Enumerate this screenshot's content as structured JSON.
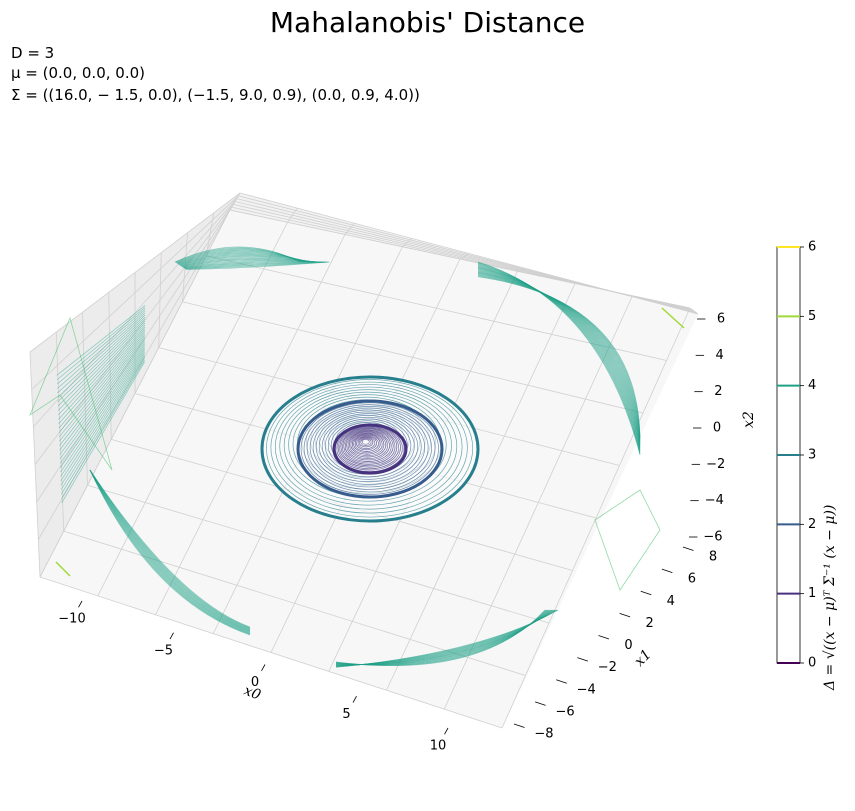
{
  "chart_data": {
    "type": "contour3d",
    "title": "Mahalanobis' Distance",
    "info": {
      "line1": "D = 3",
      "line2": "μ = (0.0, 0.0, 0.0)",
      "line3": "Σ = ((16.0, − 1.5, 0.0), (−1.5, 9.0, 0.9), (0.0, 0.9, 4.0))"
    },
    "dimension": 3,
    "mean": [
      0.0,
      0.0,
      0.0
    ],
    "covariance": [
      [
        16.0,
        -1.5,
        0.0
      ],
      [
        -1.5,
        9.0,
        0.9
      ],
      [
        0.0,
        0.9,
        4.0
      ]
    ],
    "axes": {
      "x0": {
        "label": "x0",
        "ticks": [
          "−10",
          "−5",
          "0",
          "5",
          "10"
        ],
        "range": [
          -12,
          12
        ]
      },
      "x1": {
        "label": "x1",
        "ticks": [
          "−8",
          "−6",
          "−4",
          "−2",
          "0",
          "2",
          "4",
          "6",
          "8"
        ],
        "range": [
          -9,
          9
        ]
      },
      "x2": {
        "label": "x2",
        "ticks": [
          "−6",
          "−4",
          "−2",
          "0",
          "2",
          "4",
          "6"
        ],
        "range": [
          -6,
          6
        ]
      }
    },
    "levels": [
      1,
      2,
      3,
      4,
      5
    ],
    "level_colors": [
      "#46327e",
      "#365c8d",
      "#277f8e",
      "#1fa187",
      "#4ac16d",
      "#a0da39"
    ],
    "colorbar": {
      "ticks": [
        "0",
        "1",
        "2",
        "3",
        "4",
        "5",
        "6"
      ],
      "colors": [
        "#440154",
        "#46327e",
        "#365c8d",
        "#277f8e",
        "#1fa187",
        "#a0da39",
        "#fde725"
      ],
      "label": "Δ = √((x − μ)ᵀ Σ⁻¹ (x − μ))"
    },
    "grid": true
  }
}
